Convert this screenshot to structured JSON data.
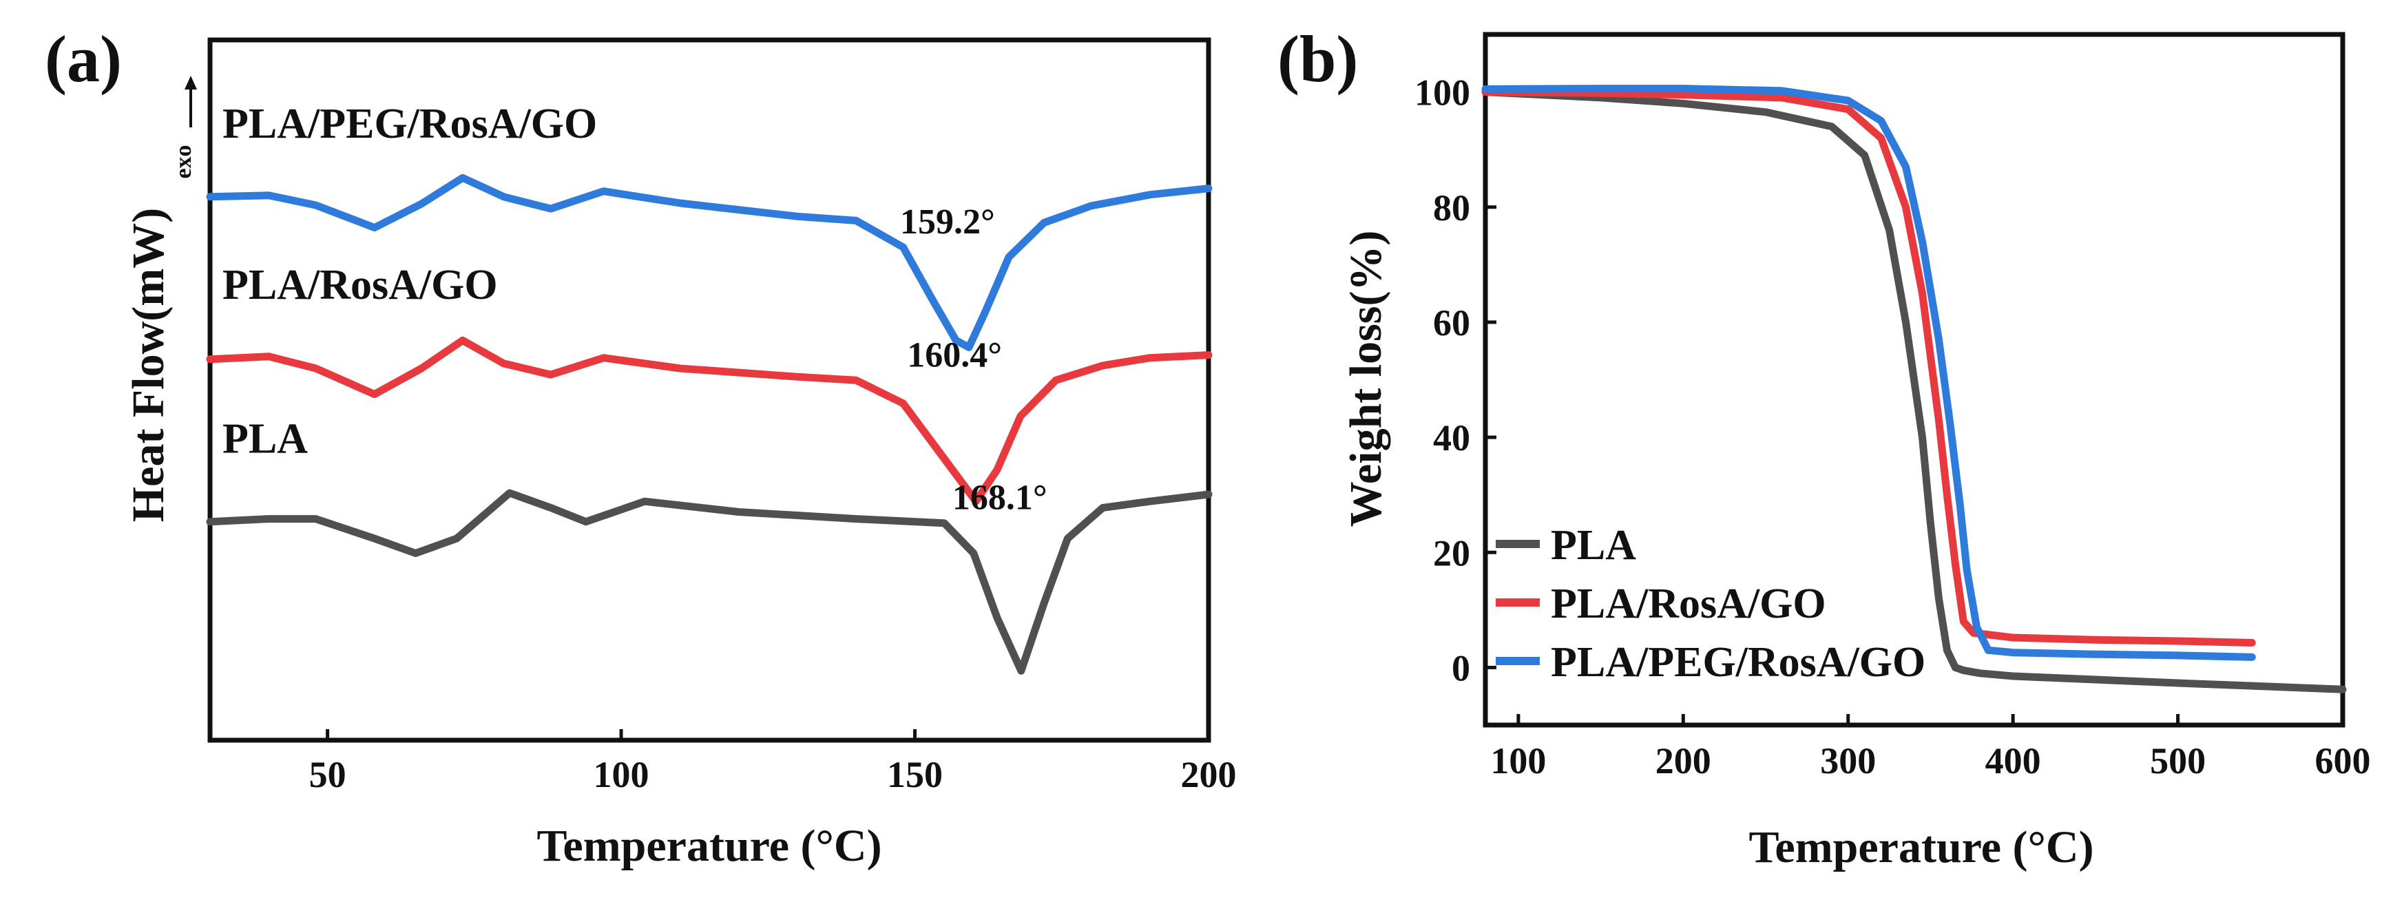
{
  "chart_data": [
    {
      "panel_label": "(a)",
      "type": "line",
      "title": "",
      "xlabel": "Temperature (°C)",
      "ylabel": "Heat Flow(mW)",
      "ylabel_note": "exo",
      "xlim": [
        30,
        200
      ],
      "ylim": [
        0,
        100
      ],
      "yticks_shown": false,
      "xticks": [
        50,
        100,
        150,
        200
      ],
      "grid": false,
      "legend": "none",
      "series": [
        {
          "name": "PLA/PEG/RosA/GO",
          "color": "#2f7bdc",
          "x": [
            30,
            40,
            48,
            58,
            66,
            73,
            80,
            88,
            97,
            110,
            130,
            140,
            148,
            153,
            157,
            159.2,
            162,
            166,
            172,
            180,
            190,
            200
          ],
          "y": [
            77.6,
            77.8,
            76.4,
            73.2,
            76.6,
            80.3,
            77.6,
            75.9,
            78.4,
            76.7,
            74.8,
            74.2,
            70.4,
            62.9,
            57.1,
            56.1,
            61.2,
            69.0,
            73.9,
            76.3,
            77.9,
            78.8
          ],
          "label_text": "PLA/PEG/RosA/GO",
          "annotation": "159.2°"
        },
        {
          "name": "PLA/RosA/GO",
          "color": "#e8393f",
          "x": [
            30,
            40,
            48,
            58,
            66,
            73,
            80,
            88,
            97,
            110,
            130,
            140,
            148,
            155,
            160.4,
            164,
            168,
            174,
            182,
            190,
            200
          ],
          "y": [
            54.4,
            54.8,
            53.1,
            49.4,
            53.1,
            57.1,
            53.8,
            52.2,
            54.6,
            53.1,
            51.9,
            51.4,
            48.1,
            40.2,
            34.1,
            38.6,
            46.3,
            51.4,
            53.5,
            54.6,
            55.0
          ],
          "label_text": "PLA/RosA/GO",
          "annotation": "160.4°"
        },
        {
          "name": "PLA",
          "color": "#505050",
          "x": [
            30,
            40,
            48,
            58,
            65,
            72,
            81,
            88,
            94,
            104,
            120,
            140,
            155,
            160,
            164,
            168.1,
            172,
            176,
            182,
            190,
            200
          ],
          "y": [
            31.2,
            31.6,
            31.6,
            28.8,
            26.7,
            28.8,
            35.3,
            33.2,
            31.2,
            34.1,
            32.6,
            31.6,
            31.0,
            26.7,
            17.5,
            9.9,
            19.6,
            28.8,
            33.2,
            34.1,
            35.1
          ],
          "label_text": "PLA",
          "annotation": "168.1°"
        }
      ]
    },
    {
      "panel_label": "(b)",
      "type": "line",
      "title": "",
      "xlabel": "Temperature (°C)",
      "ylabel": "Weight loss(%)",
      "xlim": [
        80,
        600
      ],
      "ylim": [
        -10,
        110
      ],
      "xticks": [
        100,
        200,
        300,
        400,
        500,
        600
      ],
      "yticks": [
        0,
        20,
        40,
        60,
        80,
        100
      ],
      "grid": false,
      "legend": "bottom-left",
      "series": [
        {
          "name": "PLA",
          "color": "#505050",
          "x": [
            80,
            150,
            200,
            250,
            290,
            310,
            325,
            335,
            345,
            350,
            355,
            360,
            365,
            370,
            380,
            400,
            500,
            600
          ],
          "y": [
            100,
            99,
            98,
            96.5,
            94,
            89,
            76,
            60,
            40,
            25,
            12,
            3,
            0,
            -0.5,
            -1,
            -1.5,
            -2.7,
            -3.8
          ]
        },
        {
          "name": "PLA/RosA/GO",
          "color": "#e8393f",
          "x": [
            80,
            150,
            200,
            260,
            300,
            320,
            335,
            345,
            355,
            360,
            365,
            370,
            376,
            382,
            400,
            450,
            500,
            545
          ],
          "y": [
            100,
            99.8,
            99.5,
            99,
            97,
            92,
            80,
            65,
            43,
            30,
            18,
            8,
            6,
            5.8,
            5.2,
            4.8,
            4.6,
            4.3
          ]
        },
        {
          "name": "PLA/PEG/RosA/GO",
          "color": "#2f7bdc",
          "x": [
            80,
            150,
            200,
            260,
            300,
            320,
            335,
            345,
            355,
            362,
            368,
            372,
            378,
            385,
            400,
            450,
            500,
            545
          ],
          "y": [
            100.5,
            100.6,
            100.6,
            100.2,
            98.5,
            95,
            87,
            74,
            57,
            42,
            28,
            17,
            7,
            3,
            2.6,
            2.3,
            2.1,
            1.8
          ]
        }
      ]
    }
  ]
}
